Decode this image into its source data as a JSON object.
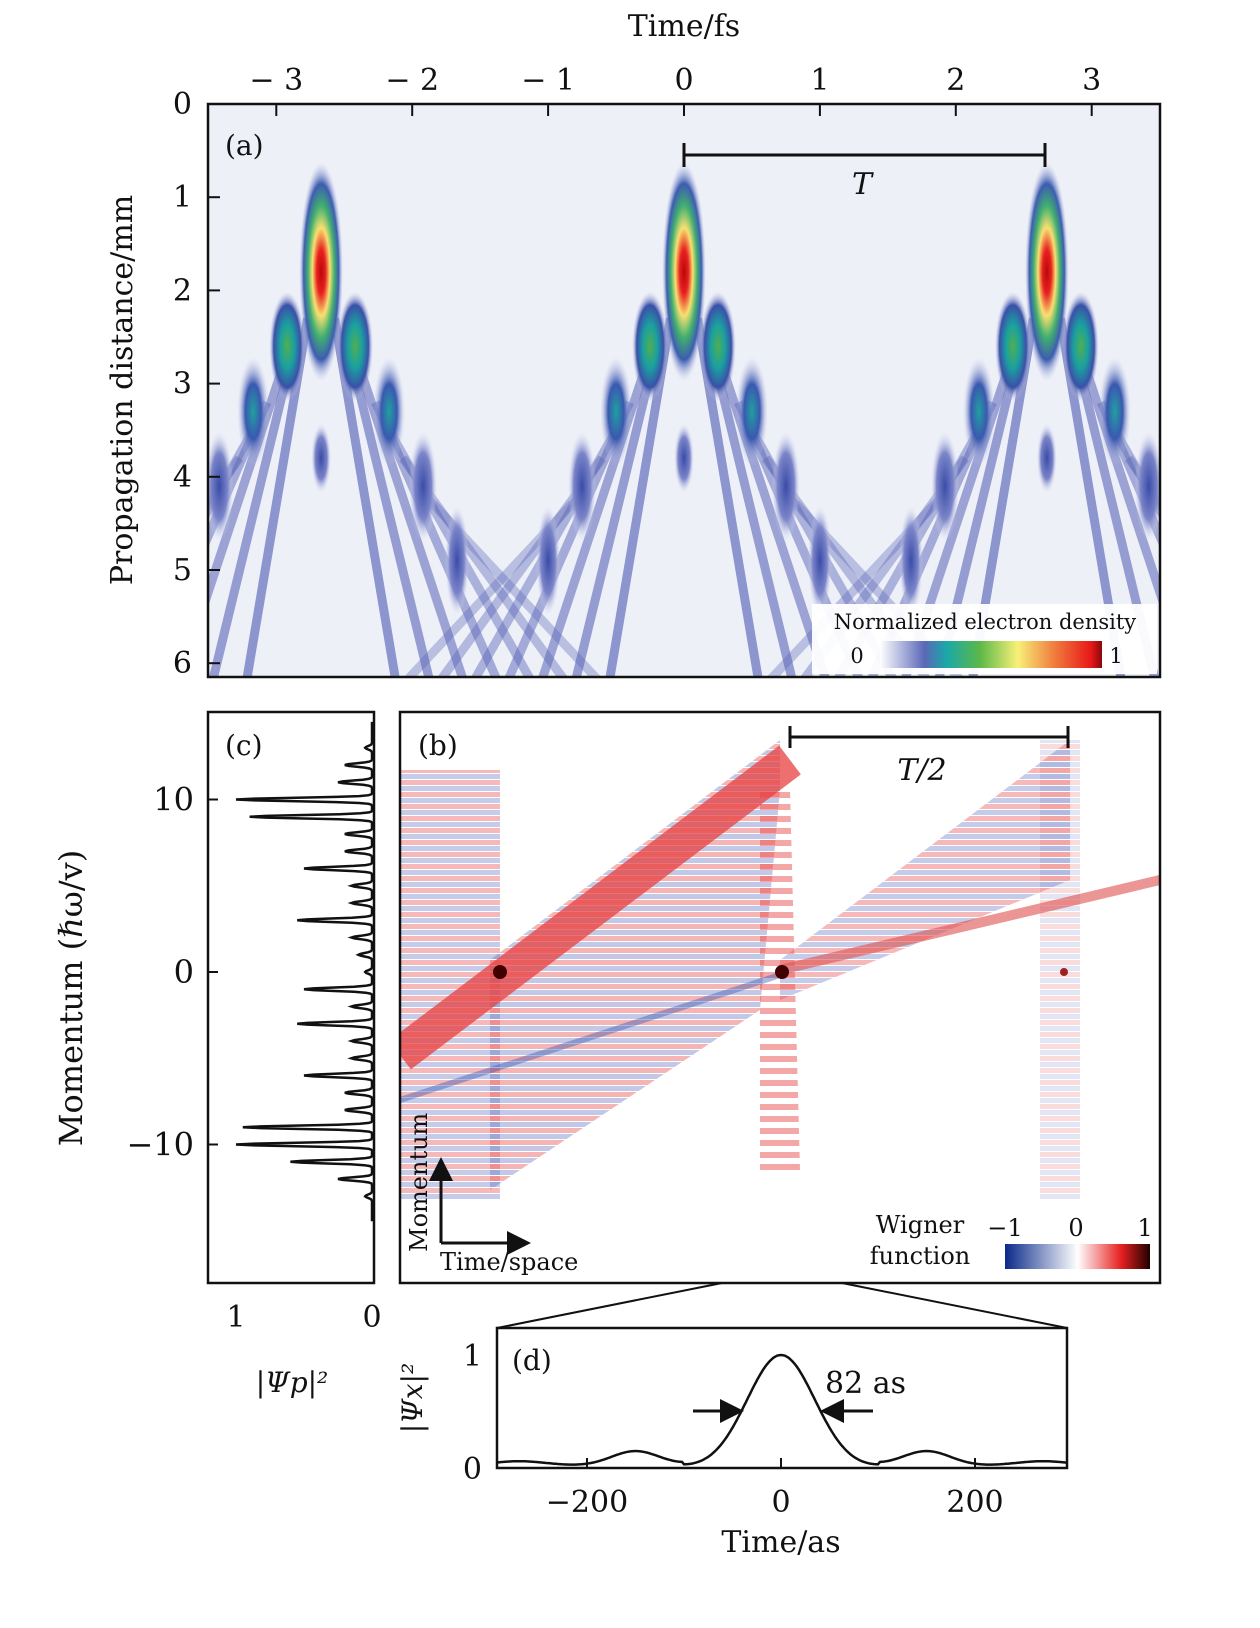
{
  "chart_data": [
    {
      "id": "a",
      "type": "heatmap",
      "panel_label": "(a)",
      "xlabel": "Time/fs",
      "ylabel": "Propagation distance/mm",
      "xlim": [
        -3.5,
        3.5
      ],
      "ylim": [
        0,
        6.15
      ],
      "xticks": [
        "−3",
        "−2",
        "−1",
        "0",
        "1",
        "2",
        "3"
      ],
      "xtick_values": [
        -3,
        -2,
        -1,
        0,
        1,
        2,
        3
      ],
      "yticks": [
        "0",
        "1",
        "2",
        "3",
        "4",
        "5",
        "6"
      ],
      "ytick_values": [
        0,
        1,
        2,
        3,
        4,
        5,
        6
      ],
      "peak_times_fs": [
        -2.67,
        0,
        2.67
      ],
      "peak_distance_mm": 1.8,
      "annotation_T": {
        "label": "T",
        "from": 0,
        "to": 2.67,
        "distance": 0.55
      },
      "colorbar": {
        "title": "Normalized electron density",
        "min_label": "0",
        "max_label": "1",
        "colors": [
          "#ffffff",
          "#5a68b8",
          "#1aa8a8",
          "#5cb848",
          "#f8f078",
          "#f08040",
          "#e81818",
          "#8a0808"
        ]
      }
    },
    {
      "id": "b",
      "type": "heatmap",
      "panel_label": "(b)",
      "annotation_T2": {
        "label": "T/2"
      },
      "inset_axes": {
        "y": "Momentum",
        "x": "Time/space"
      },
      "colorbar": {
        "title_line1": "Wigner",
        "title_line2": "function",
        "labels": [
          "−1",
          "0",
          "1"
        ],
        "colors": [
          "#0a2a8a",
          "#ffffff",
          "#e82020",
          "#200000"
        ]
      }
    },
    {
      "id": "c",
      "type": "line",
      "panel_label": "(c)",
      "xlabel": "|Ψp|²",
      "ylabel": "Momentum (ℏω/v)",
      "xlim": [
        1.1,
        0
      ],
      "ylim": [
        -18,
        15
      ],
      "xticks": [
        "1",
        "0"
      ],
      "xtick_values": [
        1,
        0
      ],
      "yticks": [
        "10",
        "0",
        "−10"
      ],
      "ytick_values": [
        10,
        0,
        -10
      ],
      "peaks": [
        {
          "p": 13,
          "v": 0.05
        },
        {
          "p": 12,
          "v": 0.2
        },
        {
          "p": 11,
          "v": 0.25
        },
        {
          "p": 10,
          "v": 1.0
        },
        {
          "p": 9,
          "v": 0.9
        },
        {
          "p": 8,
          "v": 0.2
        },
        {
          "p": 7,
          "v": 0.2
        },
        {
          "p": 6,
          "v": 0.5
        },
        {
          "p": 5,
          "v": 0.15
        },
        {
          "p": 4,
          "v": 0.15
        },
        {
          "p": 3,
          "v": 0.55
        },
        {
          "p": 2,
          "v": 0.15
        },
        {
          "p": 1,
          "v": 0.1
        },
        {
          "p": 0,
          "v": 0.05
        },
        {
          "p": -1,
          "v": 0.5
        },
        {
          "p": -2,
          "v": 0.15
        },
        {
          "p": -3,
          "v": 0.55
        },
        {
          "p": -4,
          "v": 0.15
        },
        {
          "p": -5,
          "v": 0.15
        },
        {
          "p": -6,
          "v": 0.5
        },
        {
          "p": -7,
          "v": 0.2
        },
        {
          "p": -8,
          "v": 0.2
        },
        {
          "p": -9,
          "v": 0.95
        },
        {
          "p": -10,
          "v": 1.0
        },
        {
          "p": -11,
          "v": 0.6
        },
        {
          "p": -12,
          "v": 0.25
        },
        {
          "p": -13,
          "v": 0.05
        }
      ]
    },
    {
      "id": "d",
      "type": "line",
      "panel_label": "(d)",
      "xlabel": "Time/as",
      "ylabel": "|Ψx|²",
      "xlim": [
        -292,
        295
      ],
      "ylim": [
        0,
        1.1
      ],
      "xticks": [
        "−200",
        "0",
        "200"
      ],
      "xtick_values": [
        -200,
        0,
        200
      ],
      "yticks": [
        "1",
        "0"
      ],
      "ytick_values": [
        1,
        0
      ],
      "fwhm_as": 82,
      "annotation": "82  as",
      "sidelobe_peak": 0.13,
      "sidelobe_time_as": 150
    }
  ]
}
